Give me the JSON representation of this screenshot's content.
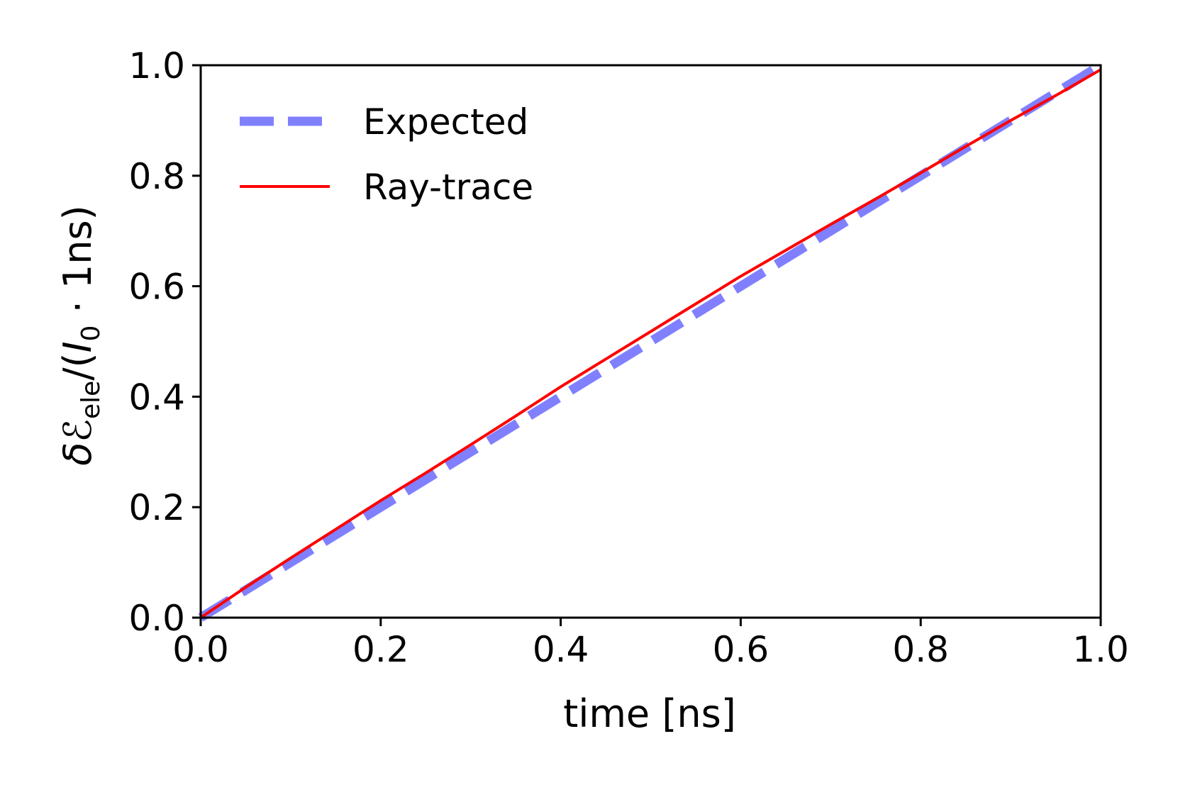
{
  "chart_data": {
    "type": "line",
    "xlabel": "time [ns]",
    "ylabel": {
      "lead": "δ",
      "symbol": "ℰ",
      "symbol_sub": "ele",
      "mid": "/(",
      "var": "I",
      "var_sub": "0",
      "tail": " · 1ns)"
    },
    "xlim": [
      0.0,
      1.0
    ],
    "ylim": [
      0.0,
      1.0
    ],
    "xticks": [
      "0.0",
      "0.2",
      "0.4",
      "0.6",
      "0.8",
      "1.0"
    ],
    "yticks": [
      "0.0",
      "0.2",
      "0.4",
      "0.6",
      "0.8",
      "1.0"
    ],
    "grid": false,
    "legend_position": "top-left",
    "series": [
      {
        "name": "Expected",
        "style": "dashed",
        "color": "#8080ff",
        "x": [
          0.0,
          1.0
        ],
        "y": [
          0.0,
          1.0
        ]
      },
      {
        "name": "Ray-trace",
        "style": "solid",
        "color": "#ff0000",
        "x": [
          0.0,
          0.05,
          0.1,
          0.15,
          0.2,
          0.25,
          0.3,
          0.35,
          0.4,
          0.45,
          0.5,
          0.55,
          0.6,
          0.65,
          0.7,
          0.75,
          0.8,
          0.85,
          0.9,
          0.95,
          1.0
        ],
        "y": [
          0.0,
          0.055,
          0.108,
          0.16,
          0.212,
          0.262,
          0.313,
          0.365,
          0.418,
          0.468,
          0.518,
          0.568,
          0.618,
          0.665,
          0.712,
          0.758,
          0.805,
          0.853,
          0.9,
          0.945,
          0.992
        ]
      }
    ]
  }
}
